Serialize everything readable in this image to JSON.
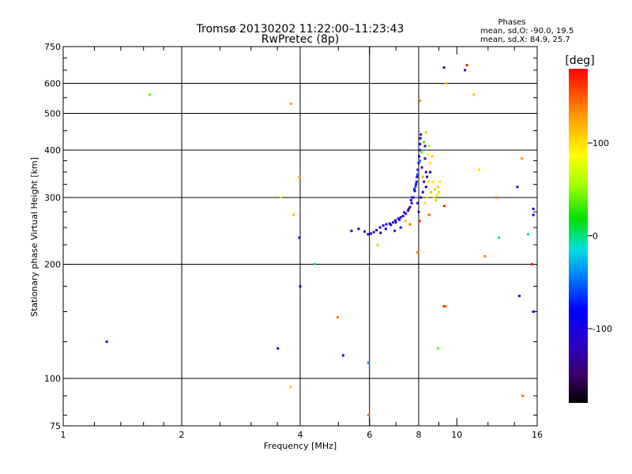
{
  "chart_data": {
    "type": "scatter",
    "title": "Tromsø 20130202 11:22:00–11:23:43",
    "subtitle": "RwPretec (8p)",
    "phases": {
      "heading": "Phases",
      "o_line": "mean, sd,O: -90.0, 19.5",
      "x_line": "mean, sd,X:  84.9, 25.7"
    },
    "xlabel": "Frequency [MHz]",
    "ylabel": "Stationary phase Virtual Height [km]",
    "xscale": "log",
    "yscale": "log",
    "xlim": [
      1,
      16
    ],
    "ylim": [
      75,
      750
    ],
    "x_ticks": [
      {
        "v": 1,
        "label": "1"
      },
      {
        "v": 2,
        "label": "2"
      },
      {
        "v": 4,
        "label": "4"
      },
      {
        "v": 6,
        "label": "6"
      },
      {
        "v": 8,
        "label": "8"
      },
      {
        "v": 10,
        "label": "10"
      },
      {
        "v": 16,
        "label": "16"
      }
    ],
    "x_grid": [
      2,
      4,
      6,
      8
    ],
    "y_ticks": [
      {
        "v": 75,
        "label": "75"
      },
      {
        "v": 100,
        "label": "100"
      },
      {
        "v": 200,
        "label": "200"
      },
      {
        "v": 300,
        "label": "300"
      },
      {
        "v": 400,
        "label": "400"
      },
      {
        "v": 500,
        "label": "500"
      },
      {
        "v": 600,
        "label": "600"
      },
      {
        "v": 750,
        "label": "750"
      }
    ],
    "y_grid": [
      100,
      200,
      300,
      400,
      500,
      600
    ],
    "colorbar": {
      "label": "[deg]",
      "range": [
        -180,
        180
      ],
      "ticks": [
        {
          "v": 100,
          "label": "100"
        },
        {
          "v": 0,
          "label": "0"
        },
        {
          "v": -100,
          "label": "-100"
        }
      ]
    },
    "points": [
      {
        "f": 1.29,
        "h": 125,
        "p": -110
      },
      {
        "f": 1.66,
        "h": 560,
        "p": 40
      },
      {
        "f": 3.51,
        "h": 120,
        "p": -110
      },
      {
        "f": 3.57,
        "h": 300,
        "p": 100
      },
      {
        "f": 3.79,
        "h": 530,
        "p": 130
      },
      {
        "f": 3.85,
        "h": 270,
        "p": 110
      },
      {
        "f": 3.78,
        "h": 95,
        "p": 110
      },
      {
        "f": 3.98,
        "h": 340,
        "p": 130
      },
      {
        "f": 3.98,
        "h": 235,
        "p": -110
      },
      {
        "f": 4.0,
        "h": 175,
        "p": -140
      },
      {
        "f": 4.35,
        "h": 200,
        "p": -10
      },
      {
        "f": 4.98,
        "h": 145,
        "p": 140
      },
      {
        "f": 5.14,
        "h": 115,
        "p": -110
      },
      {
        "f": 5.96,
        "h": 110,
        "p": -40
      },
      {
        "f": 5.96,
        "h": 80,
        "p": 140
      },
      {
        "f": 6.29,
        "h": 225,
        "p": 50
      },
      {
        "f": 7.95,
        "h": 215,
        "p": 140
      },
      {
        "f": 8.96,
        "h": 120,
        "p": 40
      },
      {
        "f": 9.28,
        "h": 155,
        "p": 170
      },
      {
        "f": 9.37,
        "h": 155,
        "p": 140
      },
      {
        "f": 8.07,
        "h": 540,
        "p": 130
      },
      {
        "f": 9.39,
        "h": 600,
        "p": 110
      },
      {
        "f": 9.29,
        "h": 285,
        "p": 170
      },
      {
        "f": 9.28,
        "h": 660,
        "p": -110
      },
      {
        "f": 10.49,
        "h": 650,
        "p": -110
      },
      {
        "f": 10.61,
        "h": 670,
        "p": 170
      },
      {
        "f": 11.05,
        "h": 560,
        "p": 110
      },
      {
        "f": 11.39,
        "h": 355,
        "p": 100
      },
      {
        "f": 11.79,
        "h": 210,
        "p": 140
      },
      {
        "f": 12.59,
        "h": 300,
        "p": 140
      },
      {
        "f": 12.79,
        "h": 235,
        "p": -10
      },
      {
        "f": 14.25,
        "h": 320,
        "p": -110
      },
      {
        "f": 14.42,
        "h": 165,
        "p": -110
      },
      {
        "f": 14.63,
        "h": 380,
        "p": 130
      },
      {
        "f": 14.7,
        "h": 90,
        "p": 140
      },
      {
        "f": 15.18,
        "h": 240,
        "p": -10
      },
      {
        "f": 15.64,
        "h": 280,
        "p": -110
      },
      {
        "f": 15.64,
        "h": 270,
        "p": -80
      },
      {
        "f": 15.52,
        "h": 200,
        "p": 170
      },
      {
        "f": 15.64,
        "h": 150,
        "p": -110
      },
      {
        "f": 5.4,
        "h": 245,
        "p": -110
      },
      {
        "f": 5.63,
        "h": 248,
        "p": -110
      },
      {
        "f": 5.83,
        "h": 244,
        "p": -110
      },
      {
        "f": 5.95,
        "h": 240,
        "p": -110
      },
      {
        "f": 6.05,
        "h": 241,
        "p": -110
      },
      {
        "f": 6.15,
        "h": 243,
        "p": -110
      },
      {
        "f": 6.25,
        "h": 246,
        "p": -110
      },
      {
        "f": 6.38,
        "h": 250,
        "p": -110
      },
      {
        "f": 6.5,
        "h": 253,
        "p": -110
      },
      {
        "f": 6.62,
        "h": 255,
        "p": -110
      },
      {
        "f": 6.75,
        "h": 256,
        "p": -110
      },
      {
        "f": 6.88,
        "h": 258,
        "p": -110
      },
      {
        "f": 6.98,
        "h": 261,
        "p": -110
      },
      {
        "f": 7.1,
        "h": 264,
        "p": -110
      },
      {
        "f": 7.2,
        "h": 266,
        "p": -110
      },
      {
        "f": 7.3,
        "h": 268,
        "p": -110
      },
      {
        "f": 7.42,
        "h": 272,
        "p": -110
      },
      {
        "f": 7.52,
        "h": 277,
        "p": -110
      },
      {
        "f": 7.6,
        "h": 283,
        "p": -110
      },
      {
        "f": 7.68,
        "h": 290,
        "p": -110
      },
      {
        "f": 7.75,
        "h": 300,
        "p": -110
      },
      {
        "f": 7.82,
        "h": 312,
        "p": -110
      },
      {
        "f": 7.87,
        "h": 325,
        "p": -110
      },
      {
        "f": 7.92,
        "h": 340,
        "p": -110
      },
      {
        "f": 7.96,
        "h": 355,
        "p": -110
      },
      {
        "f": 8.0,
        "h": 370,
        "p": -110
      },
      {
        "f": 8.02,
        "h": 385,
        "p": -110
      },
      {
        "f": 8.04,
        "h": 400,
        "p": -110
      },
      {
        "f": 8.06,
        "h": 415,
        "p": -110
      },
      {
        "f": 8.08,
        "h": 430,
        "p": -110
      },
      {
        "f": 6.4,
        "h": 242,
        "p": -110
      },
      {
        "f": 6.6,
        "h": 248,
        "p": -110
      },
      {
        "f": 6.8,
        "h": 254,
        "p": -110
      },
      {
        "f": 7.0,
        "h": 258,
        "p": -110
      },
      {
        "f": 7.15,
        "h": 262,
        "p": -110
      },
      {
        "f": 7.35,
        "h": 274,
        "p": -110
      },
      {
        "f": 7.55,
        "h": 280,
        "p": -110
      },
      {
        "f": 7.65,
        "h": 295,
        "p": -110
      },
      {
        "f": 7.8,
        "h": 315,
        "p": -110
      },
      {
        "f": 7.9,
        "h": 330,
        "p": -110
      },
      {
        "f": 8.15,
        "h": 360,
        "p": -110
      },
      {
        "f": 8.25,
        "h": 330,
        "p": -110
      },
      {
        "f": 8.2,
        "h": 310,
        "p": -110
      },
      {
        "f": 8.3,
        "h": 380,
        "p": -110
      },
      {
        "f": 8.35,
        "h": 350,
        "p": -110
      },
      {
        "f": 8.4,
        "h": 340,
        "p": -110
      },
      {
        "f": 8.1,
        "h": 440,
        "p": -110
      },
      {
        "f": 8.3,
        "h": 410,
        "p": -110
      },
      {
        "f": 7.7,
        "h": 300,
        "p": -100
      },
      {
        "f": 7.85,
        "h": 320,
        "p": -60
      },
      {
        "f": 7.95,
        "h": 345,
        "p": -60
      },
      {
        "f": 8.05,
        "h": 375,
        "p": -50
      },
      {
        "f": 8.15,
        "h": 395,
        "p": 40
      },
      {
        "f": 8.25,
        "h": 420,
        "p": 30
      },
      {
        "f": 8.35,
        "h": 445,
        "p": 50
      },
      {
        "f": 8.5,
        "h": 410,
        "p": 60
      },
      {
        "f": 8.45,
        "h": 390,
        "p": 90
      },
      {
        "f": 8.55,
        "h": 370,
        "p": 100
      },
      {
        "f": 8.6,
        "h": 350,
        "p": 90
      },
      {
        "f": 8.7,
        "h": 330,
        "p": 100
      },
      {
        "f": 8.8,
        "h": 315,
        "p": 110
      },
      {
        "f": 8.9,
        "h": 305,
        "p": 100
      },
      {
        "f": 8.95,
        "h": 320,
        "p": 110
      },
      {
        "f": 9.05,
        "h": 330,
        "p": 100
      },
      {
        "f": 8.4,
        "h": 300,
        "p": 110
      },
      {
        "f": 8.3,
        "h": 290,
        "p": 100
      },
      {
        "f": 8.6,
        "h": 310,
        "p": 120
      },
      {
        "f": 8.75,
        "h": 300,
        "p": 100
      },
      {
        "f": 8.85,
        "h": 295,
        "p": 110
      },
      {
        "f": 9.0,
        "h": 310,
        "p": 60
      },
      {
        "f": 8.2,
        "h": 340,
        "p": 120
      },
      {
        "f": 8.5,
        "h": 270,
        "p": 150
      },
      {
        "f": 7.6,
        "h": 255,
        "p": 140
      },
      {
        "f": 8.05,
        "h": 260,
        "p": 170
      },
      {
        "f": 7.4,
        "h": 260,
        "p": 110
      },
      {
        "f": 7.2,
        "h": 250,
        "p": -110
      },
      {
        "f": 6.95,
        "h": 245,
        "p": -110
      },
      {
        "f": 8.65,
        "h": 385,
        "p": 110
      },
      {
        "f": 8.45,
        "h": 330,
        "p": 100
      },
      {
        "f": 8.35,
        "h": 320,
        "p": -80
      },
      {
        "f": 8.55,
        "h": 350,
        "p": -110
      },
      {
        "f": 8.1,
        "h": 300,
        "p": -110
      },
      {
        "f": 7.95,
        "h": 290,
        "p": -110
      },
      {
        "f": 8.0,
        "h": 275,
        "p": -110
      }
    ]
  }
}
